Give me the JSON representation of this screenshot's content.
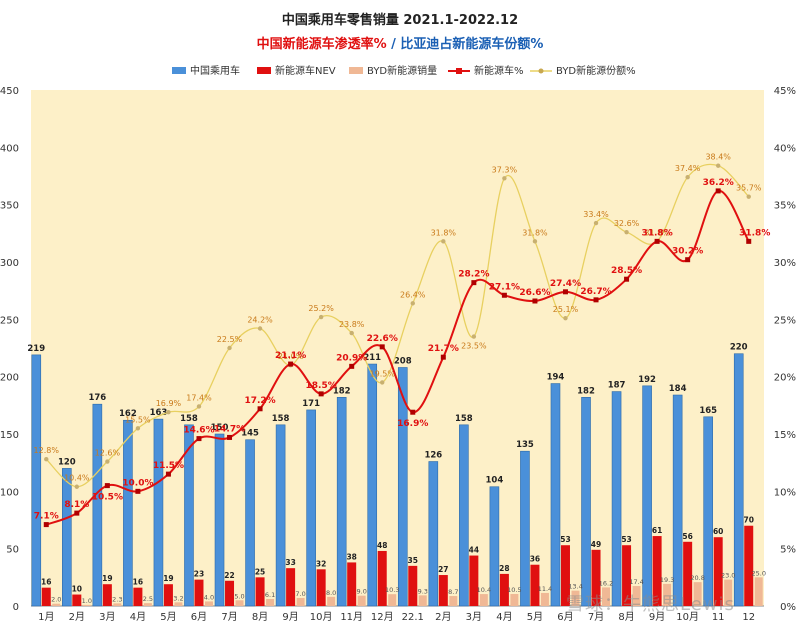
{
  "chart_data": {
    "type": "bar",
    "title": "中国乘用车零售销量  2021.1-2022.12",
    "subtitle_part1": "中国新能源车渗透率%",
    "subtitle_sep": " / ",
    "subtitle_part2": "比亚迪占新能源车份额%",
    "categories": [
      "1月",
      "2月",
      "3月",
      "4月",
      "5月",
      "6月",
      "7月",
      "8月",
      "9月",
      "10月",
      "11月",
      "12月",
      "22.1",
      "2月",
      "3月",
      "4月",
      "5月",
      "6月",
      "7月",
      "8月",
      "9月",
      "10月",
      "11",
      "12"
    ],
    "y_left": {
      "min": 0,
      "max": 450,
      "step": 50,
      "ticks": [
        "0",
        "50",
        "100",
        "150",
        "200",
        "250",
        "300",
        "350",
        "400",
        "450"
      ]
    },
    "y_right": {
      "min": 0,
      "max": 45,
      "step": 5,
      "ticks": [
        "0%",
        "5%",
        "10%",
        "15%",
        "20%",
        "25%",
        "30%",
        "35%",
        "40%",
        "45%"
      ]
    },
    "grid": false,
    "legend_position": "top",
    "series": [
      {
        "name": "中国乘用车",
        "kind": "bar",
        "axis": "left",
        "color": "#4a90d9",
        "values": [
          219,
          120,
          176,
          162,
          163,
          158,
          150,
          145,
          158,
          171,
          182,
          211,
          208,
          126,
          158,
          104,
          135,
          194,
          182,
          187,
          192,
          184,
          165,
          220
        ],
        "labels": [
          "219",
          "120",
          "176",
          "162",
          "163",
          "158",
          "150",
          "145",
          "158",
          "171",
          "182",
          "211",
          "208",
          "126",
          "158",
          "104",
          "135",
          "194",
          "182",
          "187",
          "192",
          "184",
          "165",
          "220"
        ]
      },
      {
        "name": "新能源车NEV",
        "kind": "bar",
        "axis": "left",
        "color": "#e01010",
        "values": [
          16,
          10,
          19,
          16,
          19,
          23,
          22,
          25,
          33,
          32,
          38,
          48,
          35,
          27,
          44,
          28,
          36,
          53,
          49,
          53,
          61,
          56,
          60,
          70
        ],
        "labels": [
          "16",
          "10",
          "19",
          "16",
          "19",
          "23",
          "22",
          "25",
          "33",
          "32",
          "38",
          "48",
          "35",
          "27",
          "44",
          "28",
          "36",
          "53",
          "49",
          "53",
          "61",
          "56",
          "60",
          "70"
        ]
      },
      {
        "name": "BYD新能源销量",
        "kind": "bar",
        "axis": "left",
        "color": "#f0b895",
        "values": [
          2.0,
          1.0,
          2.3,
          2.5,
          3.2,
          4.0,
          5.0,
          6.1,
          7.0,
          8.0,
          9.0,
          10.3,
          9.3,
          8.7,
          10.4,
          10.5,
          11.4,
          13.4,
          16.2,
          17.4,
          19.3,
          20.8,
          23.0,
          25.0
        ],
        "labels": [
          "2.0",
          "1.0",
          "2.3",
          "2.5",
          "3.2",
          "4.0",
          "5.0",
          "6.1",
          "7.0",
          "8.0",
          "9.0",
          "10.3",
          "9.3",
          "8.7",
          "10.4",
          "10.5",
          "11.4",
          "13.4",
          "16.2",
          "17.4",
          "19.3",
          "20.8",
          "23.0",
          "25.0"
        ]
      },
      {
        "name": "新能源车%",
        "kind": "line",
        "axis": "right",
        "color": "#e01010",
        "values": [
          7.1,
          8.1,
          10.5,
          10.0,
          11.5,
          14.6,
          14.7,
          17.2,
          21.1,
          18.5,
          20.9,
          22.6,
          16.9,
          21.7,
          28.2,
          27.1,
          26.6,
          27.4,
          26.7,
          28.5,
          31.8,
          30.2,
          36.2,
          31.8
        ],
        "labels": [
          "7.1%",
          "8.1%",
          "10.5%",
          "10.0%",
          "11.5%",
          "14.6%",
          "14.7%",
          "17.2%",
          "21.1%",
          "18.5%",
          "20.9%",
          "22.6%",
          "16.9%",
          "21.7%",
          "28.2%",
          "27.1%",
          "26.6%",
          "27.4%",
          "26.7%",
          "28.5%",
          "31.8%",
          "30.2%",
          "36.2%",
          "31.8%"
        ]
      },
      {
        "name": "BYD新能源份额%",
        "kind": "line",
        "axis": "right",
        "color": "#e8d060",
        "values": [
          12.8,
          10.4,
          12.6,
          15.5,
          16.9,
          17.4,
          22.5,
          24.2,
          21.0,
          25.2,
          23.8,
          19.5,
          26.4,
          31.8,
          23.5,
          37.3,
          31.8,
          25.1,
          33.4,
          32.6,
          31.8,
          37.4,
          38.4,
          35.7
        ],
        "labels": [
          "12.8%",
          "10.4%",
          "12.6%",
          "15.5%",
          "16.9%",
          "17.4%",
          "22.5%",
          "24.2%",
          "21.0%",
          "25.2%",
          "23.8%",
          "19.5%",
          "26.4%",
          "31.8%",
          "23.5%",
          "37.3%",
          "31.8%",
          "25.1%",
          "33.4%",
          "32.6%",
          "31.8%",
          "37.4%",
          "38.4%",
          "35.7%"
        ]
      }
    ]
  },
  "watermark": "雪球：牛熊思Lewis",
  "colors": {
    "plot_background": "#fdf0c8",
    "title": "#222222",
    "subtitle_red": "#e01010",
    "subtitle_blue": "#1a5fb4"
  }
}
